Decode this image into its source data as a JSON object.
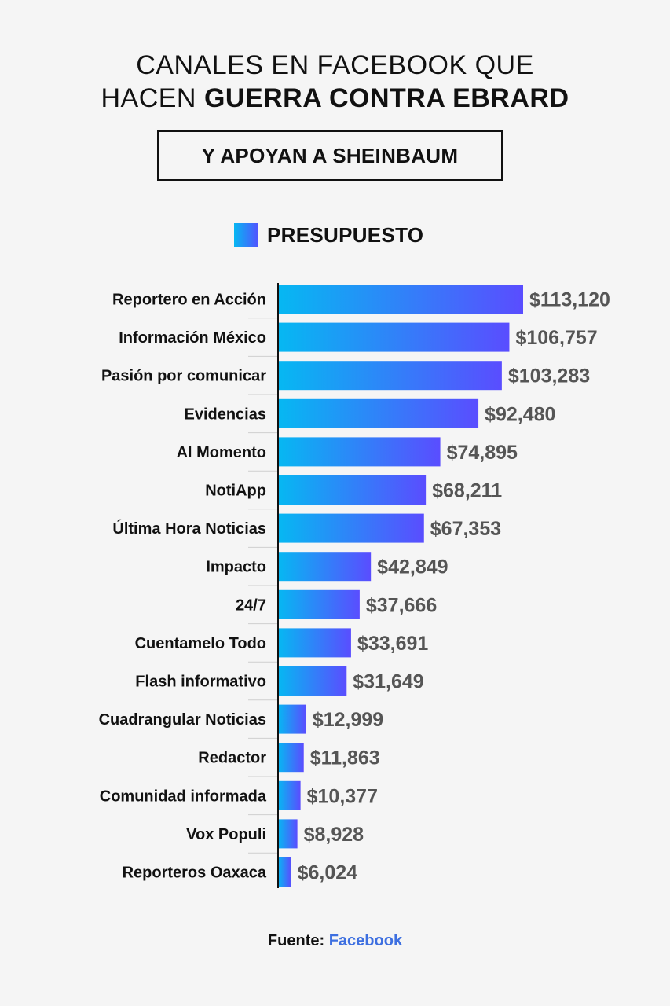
{
  "header": {
    "title_line1": "CANALES EN FACEBOOK QUE",
    "title_line2_regular": "HACEN ",
    "title_line2_bold": "GUERRA CONTRA EBRARD",
    "subtitle": "Y APOYAN A SHEINBAUM"
  },
  "legend": {
    "label": "PRESUPUESTO"
  },
  "colors": {
    "bar_start": "#06b8f2",
    "bar_end": "#5a4dff",
    "axis": "#111111",
    "value_text": "#555555"
  },
  "chart_data": {
    "type": "bar",
    "orientation": "horizontal",
    "title": "",
    "xlabel": "",
    "ylabel": "",
    "xlim": [
      0,
      120000
    ],
    "categories": [
      "Reportero en Acción",
      "Información México",
      "Pasión por comunicar",
      "Evidencias",
      "Al Momento",
      "NotiApp",
      "Última Hora Noticias",
      "Impacto",
      "24/7",
      "Cuentamelo Todo",
      "Flash informativo",
      "Cuadrangular Noticias",
      "Redactor",
      "Comunidad informada",
      "Vox Populi",
      "Reporteros Oaxaca"
    ],
    "series": [
      {
        "name": "PRESUPUESTO",
        "values": [
          113120,
          106757,
          103283,
          92480,
          74895,
          68211,
          67353,
          42849,
          37666,
          33691,
          31649,
          12999,
          11863,
          10377,
          8928,
          6024
        ]
      }
    ],
    "value_labels": [
      "$113,120",
      "$106,757",
      "$103,283",
      "$92,480",
      "$74,895",
      "$68,211",
      "$67,353",
      "$42,849",
      "$37,666",
      "$33,691",
      "$31,649",
      "$12,999",
      "$11,863",
      "$10,377",
      "$8,928",
      "$6,024"
    ],
    "grid": false,
    "legend_position": "top"
  },
  "footer": {
    "source_label": "Fuente: ",
    "source_name": "Facebook"
  }
}
